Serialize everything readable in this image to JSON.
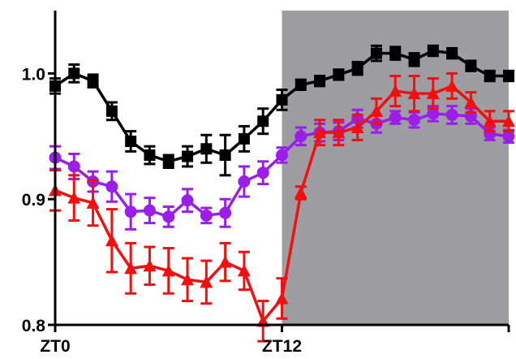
{
  "chart_data": {
    "type": "line",
    "title": "",
    "xlabel": "",
    "ylabel": "",
    "x_tick_labels": [
      {
        "x": 0,
        "label": "ZT0"
      },
      {
        "x": 12,
        "label": "ZT12"
      },
      {
        "x": 24,
        "label": ""
      }
    ],
    "y_tick_labels": [
      {
        "y": 1.0,
        "label": "1.0"
      },
      {
        "y": 0.9,
        "label": "0.9"
      },
      {
        "y": 0.8,
        "label": "0.8"
      }
    ],
    "xlim": [
      0,
      24
    ],
    "ylim": [
      0.8,
      1.05
    ],
    "dark_phase": {
      "from": 12,
      "to": 24,
      "color": "#9e9ea2"
    },
    "grid": false,
    "legend": "none",
    "series": [
      {
        "color": "#000000",
        "marker": "square",
        "x": [
          0,
          1,
          2,
          3,
          4,
          5,
          6,
          7,
          8,
          9,
          10,
          11,
          12,
          13,
          14,
          15,
          16,
          17,
          18,
          19,
          20,
          21,
          22,
          23,
          24
        ],
        "y": [
          0.99,
          1.0,
          0.994,
          0.97,
          0.946,
          0.935,
          0.93,
          0.934,
          0.94,
          0.935,
          0.948,
          0.962,
          0.979,
          0.991,
          0.994,
          0.999,
          1.004,
          1.016,
          1.016,
          1.011,
          1.018,
          1.016,
          1.006,
          0.998,
          0.998
        ],
        "err": [
          0.006,
          0.007,
          0.005,
          0.007,
          0.008,
          0.007,
          0.005,
          0.008,
          0.011,
          0.016,
          0.01,
          0.01,
          0.008,
          0.004,
          0.004,
          0.004,
          0.005,
          0.006,
          0.005,
          0.005,
          0.004,
          0.004,
          0.004,
          0.004,
          0.004
        ]
      },
      {
        "color": "#9b1ee8",
        "marker": "circle",
        "x": [
          0,
          1,
          2,
          3,
          4,
          5,
          6,
          7,
          8,
          9,
          10,
          11,
          12,
          13,
          14,
          15,
          16,
          17,
          18,
          19,
          20,
          21,
          22,
          23,
          24
        ],
        "y": [
          0.933,
          0.926,
          0.914,
          0.91,
          0.89,
          0.891,
          0.886,
          0.899,
          0.887,
          0.889,
          0.914,
          0.921,
          0.935,
          0.95,
          0.953,
          0.954,
          0.964,
          0.96,
          0.965,
          0.963,
          0.968,
          0.967,
          0.966,
          0.952,
          0.95
        ],
        "err": [
          0.009,
          0.01,
          0.008,
          0.012,
          0.014,
          0.01,
          0.008,
          0.009,
          0.006,
          0.011,
          0.012,
          0.009,
          0.006,
          0.007,
          0.007,
          0.007,
          0.007,
          0.007,
          0.005,
          0.006,
          0.006,
          0.007,
          0.006,
          0.005,
          0.005
        ]
      },
      {
        "color": "#f01010",
        "marker": "triangle",
        "x": [
          0,
          1,
          2,
          3,
          4,
          5,
          6,
          7,
          8,
          9,
          10,
          11,
          12,
          13,
          14,
          15,
          16,
          17,
          18,
          19,
          20,
          21,
          22,
          23,
          24
        ],
        "y": [
          0.907,
          0.901,
          0.897,
          0.867,
          0.845,
          0.847,
          0.843,
          0.836,
          0.834,
          0.85,
          0.843,
          0.803,
          0.821,
          0.905,
          0.953,
          0.953,
          0.957,
          0.97,
          0.986,
          0.984,
          0.984,
          0.99,
          0.977,
          0.962,
          0.962
        ],
        "err": [
          0.016,
          0.018,
          0.018,
          0.025,
          0.02,
          0.015,
          0.018,
          0.017,
          0.017,
          0.015,
          0.015,
          0.016,
          0.016,
          0.005,
          0.01,
          0.01,
          0.01,
          0.01,
          0.012,
          0.014,
          0.012,
          0.01,
          0.008,
          0.008,
          0.008
        ]
      }
    ]
  }
}
